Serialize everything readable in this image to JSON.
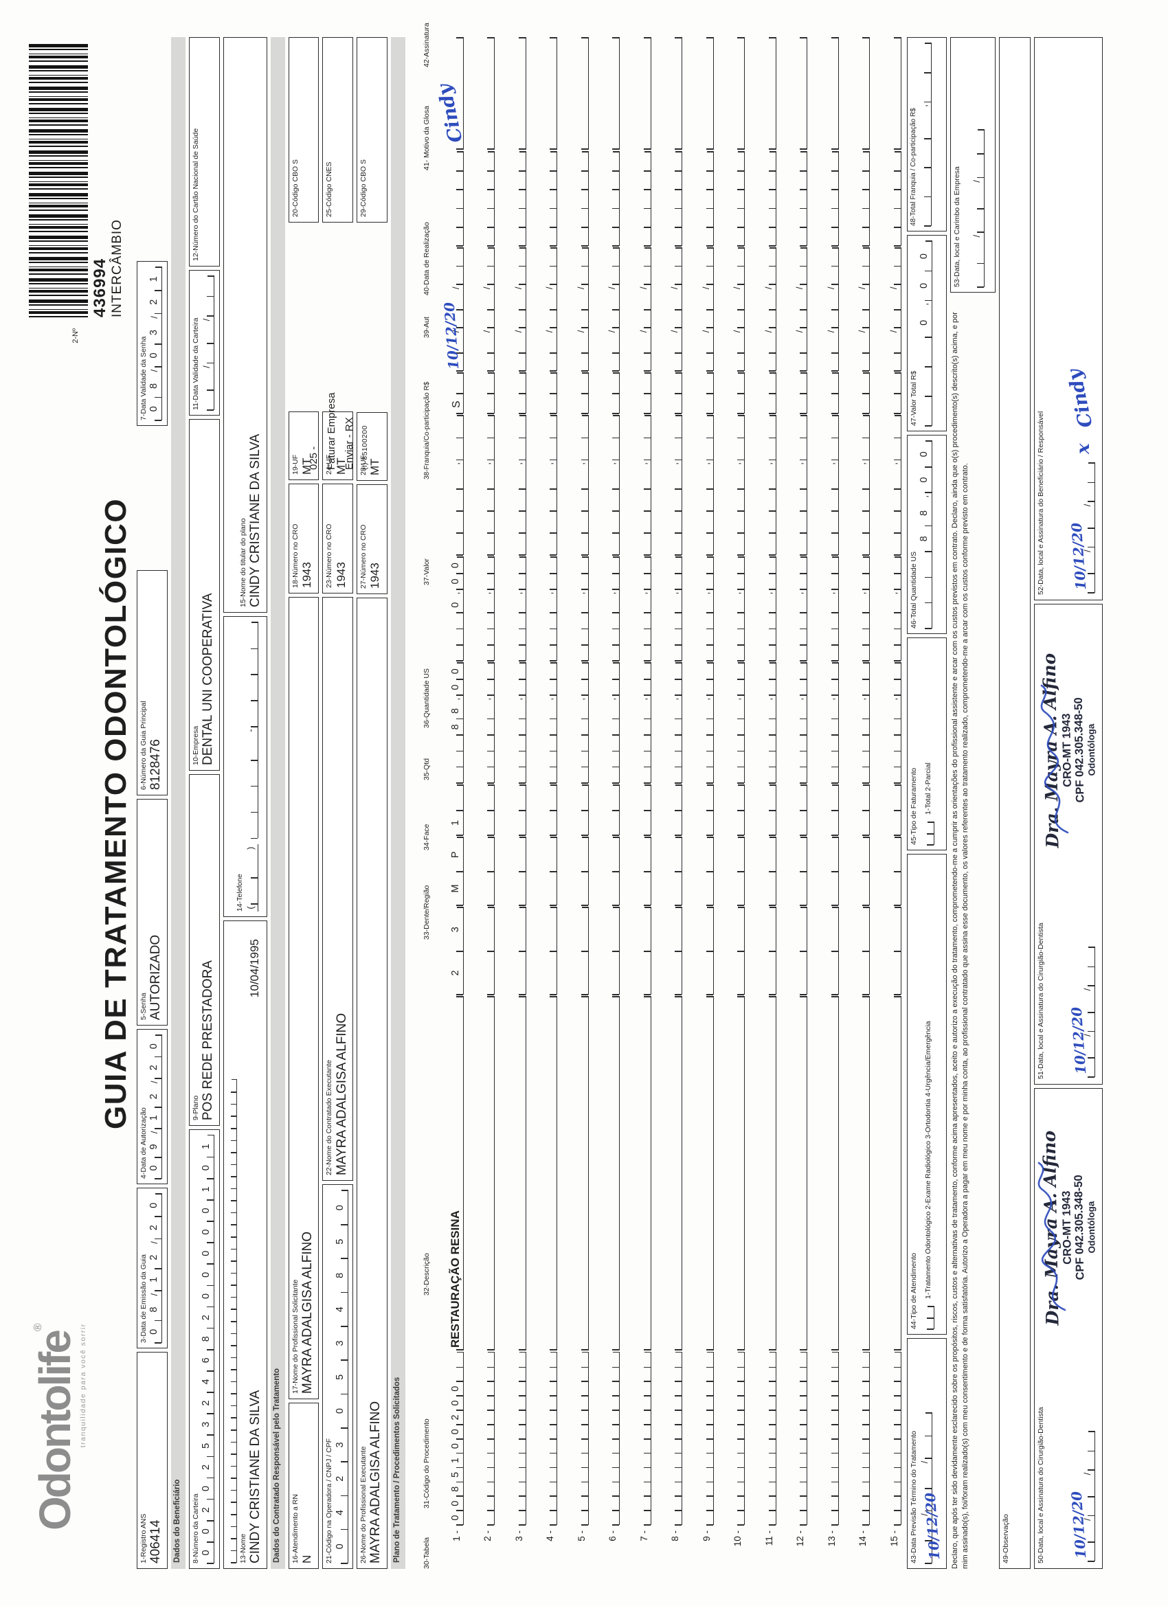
{
  "brand": {
    "logo_text": "Odontolife",
    "logo_reg": "®",
    "tagline": "tranquilidade para você sorrir"
  },
  "title": "GUIA DE TRATAMENTO ODONTOLÓGICO",
  "barcode": {
    "field_label": "2-Nº",
    "number": "436994",
    "type": "INTERCÂMBIO"
  },
  "header_fields": {
    "registro_ans": {
      "label": "1-Registro ANS",
      "value": "406414"
    },
    "emissao": {
      "label": "3-Data de Emissão da Guia",
      "value": "08/12/20"
    },
    "autorizacao": {
      "label": "4-Data de Autorização",
      "value": "09/12/20"
    },
    "senha": {
      "label": "5-Senha",
      "value": "AUTORIZADO"
    },
    "guia_principal": {
      "label": "6-Número da Guia Principal",
      "value": "8128476"
    },
    "validade_senha": {
      "label": "7-Data Validade da Senha",
      "value": "08/03/21"
    }
  },
  "sections": {
    "beneficiario": "Dados do Beneficiário",
    "contratado": "Dados do Contratado Responsável pelo Tratamento",
    "plano": "Plano de Tratamento / Procedimentos Solicitados"
  },
  "beneficiario": {
    "carteira": {
      "label": "8-Número da Carteira",
      "value": "00202532468200000101"
    },
    "plano": {
      "label": "9-Plano",
      "value": "POS REDE PRESTADORA"
    },
    "empresa": {
      "label": "10-Empresa",
      "value": "DENTAL UNI COOPERATIVA"
    },
    "validade_carteira": {
      "label": "11-Data Validade da Carteira",
      "value": ""
    },
    "cartao_nacional": {
      "label": "12-Número do Cartão Nacional de Saúde",
      "value": ""
    },
    "nome": {
      "label": "13-Nome",
      "value": "CINDY CRISTIANE DA SILVA"
    },
    "nascimento": {
      "value": "10/04/1995"
    },
    "telefone": {
      "label": "14-Telefone",
      "value": ""
    },
    "titular": {
      "label": "15-Nome do titular do plano",
      "value": "CINDY CRISTIANE DA SILVA"
    }
  },
  "contratado": {
    "rn": {
      "label": "16-Atendimento a RN",
      "value": "N"
    },
    "solicitante": {
      "label": "17-Nome do Profissional Solicitante",
      "value": "MAYRA ADALGISA ALFINO"
    },
    "cro18": {
      "label": "18-Número no CRO",
      "value": "1943"
    },
    "uf19": {
      "label": "19-UF",
      "value": "MT"
    },
    "cbo20": {
      "label": "20-Código CBO S",
      "value": ""
    },
    "operadora": {
      "label": "21-Código na Operadora / CNPJ / CPF",
      "value": "04230534850"
    },
    "executante": {
      "label": "22-Nome do Contratado Executante",
      "value": "MAYRA ADALGISA ALFINO"
    },
    "cro23": {
      "label": "23-Número no CRO",
      "value": "1943"
    },
    "uf24": {
      "label": "24-UF",
      "value": "MT"
    },
    "cnes25": {
      "label": "25-Código CNES",
      "value": ""
    },
    "prof_executante": {
      "label": "26-Nome do Profissional Executante",
      "value": "MAYRA ADALGISA ALFINO"
    },
    "cro27": {
      "label": "27-Número no CRO",
      "value": "1943"
    },
    "uf28": {
      "label": "28-UF",
      "value": "MT"
    },
    "cbo29": {
      "label": "29-Código CBO S",
      "value": ""
    },
    "annotation": {
      "line1": "025 -",
      "line2": "Faturar Empresa",
      "line3": "Enviar - RX",
      "line4": "(l) 85100200"
    }
  },
  "table": {
    "headers": [
      "30-Tabela",
      "31-Código do Procedimento",
      "32-Descrição",
      "33-Dente/Região",
      "34-Face",
      "35-Qtd",
      "36-Quantidade US",
      "37-Valor",
      "38-Franquia/Co-participação R$",
      "39-Aut",
      "40-Data de Realização",
      "41- Motivo da Glosa",
      "42-Assinatura"
    ],
    "row1": {
      "num": "1 -",
      "codigo": "0085100200",
      "descricao": "RESTAURAÇÃO RESINA",
      "dente": "23",
      "face": "MP",
      "qtd": "1",
      "us": "88,00",
      "valor": "0,00",
      "franquia": "",
      "aut": "S",
      "data_realizacao": "10/12/20",
      "motivo_glosa": "",
      "assinatura": "Cindy"
    },
    "empty_row_nums": [
      "2 -",
      "3 -",
      "4 -",
      "5 -",
      "6 -",
      "7 -",
      "8 -",
      "9 -",
      "10 -",
      "11 -",
      "12 -",
      "13 -",
      "14 -",
      "15 -"
    ]
  },
  "totals": {
    "previsao": {
      "label": "43-Data Previsão Término do Tratamento",
      "value": "10/12/20"
    },
    "tipo_atendimento": {
      "label": "44-Tipo de Atendimento",
      "options": "1-Tratamento Odontológico   2-Exame Radiológico   3-Ortodontia   4-Urgência/Emergência"
    },
    "tipo_faturamento": {
      "label": "45-Tipo de Faturamento",
      "options": "1-Total   2-Parcial"
    },
    "total_us": {
      "label": "46-Total Quantidade US",
      "value": "88,00"
    },
    "valor_total": {
      "label": "47-Valor Total R$",
      "value": "0,00"
    },
    "total_franquia": {
      "label": "48-Total Franquia / Co-participação R$",
      "value": ""
    }
  },
  "declaration": "Declaro, que após ter sido devidamente esclarecido sobre os propósitos, riscos, custos e alternativas de tratamento, conforme acima apresentados, aceito e autorizo a execução do tratamento, comprometendo-me a cumprir as orientações do profissional assistente e arcar com os custos previstos em contrato. Declaro, ainda que o(s) procedimento(s) descrito(s) acima, e por mim assinado(s), foi/foram realizado(s) com meu consentimento e de forma satisfatória. Autorizo a Operadora a pagar em meu nome e por minha conta, ao profissional contratado que assina esse documento, os valores referentes ao tratamento realizado, comprometendo-me a arcar com os custos conforme previsto em contrato.",
  "observacao_label": "49-Observação",
  "signatures": {
    "s50": {
      "label": "50-Data, local e Assinatura do Cirurgião-Dentista",
      "date": "10/12/20"
    },
    "s51": {
      "label": "51-Data, local e Assinatura do Cirurgião-Dentista",
      "date": "10/12/20"
    },
    "s52": {
      "label": "52-Data, local e Assinatura do Beneficiário / Responsável",
      "date": "10/12/20",
      "mark": "x",
      "signature": "Cindy"
    },
    "s53": {
      "label": "53-Data, local e Carimbo da Empresa"
    },
    "stamp": {
      "name": "Dra. Mayra A. Alfino",
      "cro": "CRO-MT 1943",
      "cpf": "CPF 042.305.348-50",
      "role": "Odontóloga"
    }
  },
  "colors": {
    "ink": "#1e1e1e",
    "handwriting_blue": "#2e4cbd",
    "section_bar_gray": "#d8d8d6",
    "logo_gray": "#8d8d8d"
  }
}
